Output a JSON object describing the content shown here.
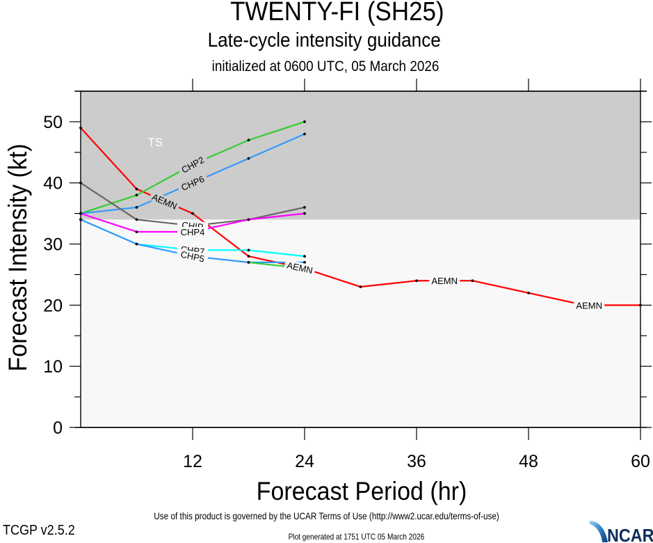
{
  "header": {
    "title": "TWENTY-FI (SH25)",
    "subtitle": "Late-cycle intensity guidance",
    "initialized": "initialized at 0600 UTC, 05 March 2026"
  },
  "footer": {
    "terms": "Use of this product is governed by the UCAR Terms of Use (http://www2.ucar.edu/terms-of-use)",
    "version": "TCGP v2.5.2",
    "generated": "Plot generated at 1751 UTC   05 March 2026",
    "logo_text": "NCAR"
  },
  "chart_data": {
    "type": "line",
    "title": "TWENTY-FI (SH25)",
    "subtitle": "Late-cycle intensity guidance",
    "xlabel": "Forecast Period (hr)",
    "ylabel": "Forecast Intensity (kt)",
    "xlim": [
      0,
      60
    ],
    "ylim": [
      0,
      55
    ],
    "xticks": [
      12,
      24,
      36,
      48,
      60
    ],
    "xminor_ticks": [
      0,
      12,
      24,
      36,
      48,
      60
    ],
    "yticks": [
      0,
      10,
      20,
      30,
      40,
      50
    ],
    "yminor_step": 5,
    "grid": false,
    "background_bands": [
      {
        "label": "TS",
        "from": 34,
        "to": 55,
        "color": "#cccccc"
      },
      {
        "label": "",
        "from": 0,
        "to": 34,
        "color": "#f8f8f8"
      }
    ],
    "series": [
      {
        "name": "AEMN",
        "color": "#ff0000",
        "x": [
          0,
          6,
          12,
          18,
          24,
          30,
          36,
          42,
          48,
          54,
          60
        ],
        "y": [
          49,
          39,
          35,
          28,
          26,
          23,
          24,
          24,
          22,
          20,
          20
        ],
        "labels_at": [
          9,
          23.5,
          39,
          54.5
        ]
      },
      {
        "name": "CHP2",
        "color": "#33cc33",
        "x": [
          0,
          6,
          12,
          18,
          24
        ],
        "y": [
          35,
          38,
          43,
          47,
          50
        ],
        "labels_at": [
          12
        ]
      },
      {
        "name": "CHP6",
        "color": "#3399ff",
        "x": [
          0,
          6,
          12,
          18,
          24
        ],
        "y": [
          35,
          36,
          40,
          44,
          48
        ],
        "labels_at": [
          12
        ]
      },
      {
        "name": "CHIP",
        "color": "#666666",
        "x": [
          0,
          6,
          12,
          18,
          24
        ],
        "y": [
          40,
          34,
          33,
          34,
          36
        ],
        "labels_at": [
          12
        ]
      },
      {
        "name": "CHP4",
        "color": "#ff00ff",
        "x": [
          0,
          6,
          12,
          18,
          24
        ],
        "y": [
          35,
          32,
          32,
          34,
          35
        ],
        "labels_at": [
          12
        ]
      },
      {
        "name": "CHP7",
        "color": "#00ffff",
        "x": [
          0,
          6,
          12,
          18,
          24
        ],
        "y": [
          34,
          30,
          29,
          29,
          28
        ],
        "labels_at": [
          12
        ]
      },
      {
        "name": "CHP5",
        "color": "#3399ff",
        "x": [
          0,
          6,
          12,
          18,
          24
        ],
        "y": [
          34,
          30,
          28,
          27,
          27
        ],
        "labels_at": [
          12
        ]
      },
      {
        "name": "",
        "color": "#33cc33",
        "x": [
          18,
          24
        ],
        "y": [
          27,
          26
        ],
        "labels_at": []
      }
    ]
  }
}
